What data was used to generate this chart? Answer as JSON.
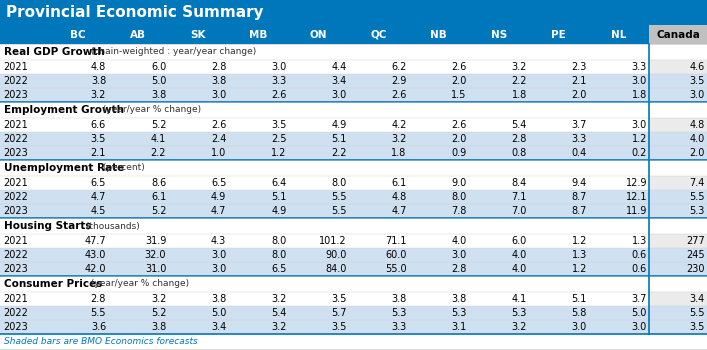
{
  "title": "Provincial Economic Summary",
  "title_bg_color": "#0077bb",
  "title_text_color": "#ffffff",
  "header_bg_color": "#0077bb",
  "header_text_color": "#ffffff",
  "shaded_row_color": "#cfe0f0",
  "white_row_color": "#ffffff",
  "footer_text": "Shaded bars are BMO Economics forecasts",
  "columns": [
    "BC",
    "AB",
    "SK",
    "MB",
    "ON",
    "QC",
    "NB",
    "NS",
    "PE",
    "NL",
    "Canada"
  ],
  "sections": [
    {
      "name": "Real GDP Growth",
      "subtitle": " (chain-weighted : year/year change)",
      "rows": [
        {
          "year": "2021",
          "values": [
            "4.8",
            "6.0",
            "2.8",
            "3.0",
            "4.4",
            "6.2",
            "2.6",
            "3.2",
            "2.3",
            "3.3",
            "4.6"
          ],
          "shaded": false
        },
        {
          "year": "2022",
          "values": [
            "3.8",
            "5.0",
            "3.8",
            "3.3",
            "3.4",
            "2.9",
            "2.0",
            "2.2",
            "2.1",
            "3.0",
            "3.5"
          ],
          "shaded": true
        },
        {
          "year": "2023",
          "values": [
            "3.2",
            "3.8",
            "3.0",
            "2.6",
            "3.0",
            "2.6",
            "1.5",
            "1.8",
            "2.0",
            "1.8",
            "3.0"
          ],
          "shaded": true
        }
      ]
    },
    {
      "name": "Employment Growth",
      "subtitle": " (year/year % change)",
      "rows": [
        {
          "year": "2021",
          "values": [
            "6.6",
            "5.2",
            "2.6",
            "3.5",
            "4.9",
            "4.2",
            "2.6",
            "5.4",
            "3.7",
            "3.0",
            "4.8"
          ],
          "shaded": false
        },
        {
          "year": "2022",
          "values": [
            "3.5",
            "4.1",
            "2.4",
            "2.5",
            "5.1",
            "3.2",
            "2.0",
            "2.8",
            "3.3",
            "1.2",
            "4.0"
          ],
          "shaded": true
        },
        {
          "year": "2023",
          "values": [
            "2.1",
            "2.2",
            "1.0",
            "1.2",
            "2.2",
            "1.8",
            "0.9",
            "0.8",
            "0.4",
            "0.2",
            "2.0"
          ],
          "shaded": true
        }
      ]
    },
    {
      "name": "Unemployment Rate",
      "subtitle": " (percent)",
      "rows": [
        {
          "year": "2021",
          "values": [
            "6.5",
            "8.6",
            "6.5",
            "6.4",
            "8.0",
            "6.1",
            "9.0",
            "8.4",
            "9.4",
            "12.9",
            "7.4"
          ],
          "shaded": false
        },
        {
          "year": "2022",
          "values": [
            "4.7",
            "6.1",
            "4.9",
            "5.1",
            "5.5",
            "4.8",
            "8.0",
            "7.1",
            "8.7",
            "12.1",
            "5.5"
          ],
          "shaded": true
        },
        {
          "year": "2023",
          "values": [
            "4.5",
            "5.2",
            "4.7",
            "4.9",
            "5.5",
            "4.7",
            "7.8",
            "7.0",
            "8.7",
            "11.9",
            "5.3"
          ],
          "shaded": true
        }
      ]
    },
    {
      "name": "Housing Starts",
      "subtitle": " (thousands)",
      "rows": [
        {
          "year": "2021",
          "values": [
            "47.7",
            "31.9",
            "4.3",
            "8.0",
            "101.2",
            "71.1",
            "4.0",
            "6.0",
            "1.2",
            "1.3",
            "277"
          ],
          "shaded": false
        },
        {
          "year": "2022",
          "values": [
            "43.0",
            "32.0",
            "3.0",
            "8.0",
            "90.0",
            "60.0",
            "3.0",
            "4.0",
            "1.3",
            "0.6",
            "245"
          ],
          "shaded": true
        },
        {
          "year": "2023",
          "values": [
            "42.0",
            "31.0",
            "3.0",
            "6.5",
            "84.0",
            "55.0",
            "2.8",
            "4.0",
            "1.2",
            "0.6",
            "230"
          ],
          "shaded": true
        }
      ]
    },
    {
      "name": "Consumer Prices",
      "subtitle": " (year/year % change)",
      "rows": [
        {
          "year": "2021",
          "values": [
            "2.8",
            "3.2",
            "3.8",
            "3.2",
            "3.5",
            "3.8",
            "3.8",
            "4.1",
            "5.1",
            "3.7",
            "3.4"
          ],
          "shaded": false
        },
        {
          "year": "2022",
          "values": [
            "5.5",
            "5.2",
            "5.0",
            "5.4",
            "5.7",
            "5.3",
            "5.3",
            "5.3",
            "5.8",
            "5.0",
            "5.5"
          ],
          "shaded": true
        },
        {
          "year": "2023",
          "values": [
            "3.6",
            "3.8",
            "3.4",
            "3.2",
            "3.5",
            "3.3",
            "3.1",
            "3.2",
            "3.0",
            "3.0",
            "3.5"
          ],
          "shaded": true
        }
      ]
    }
  ]
}
